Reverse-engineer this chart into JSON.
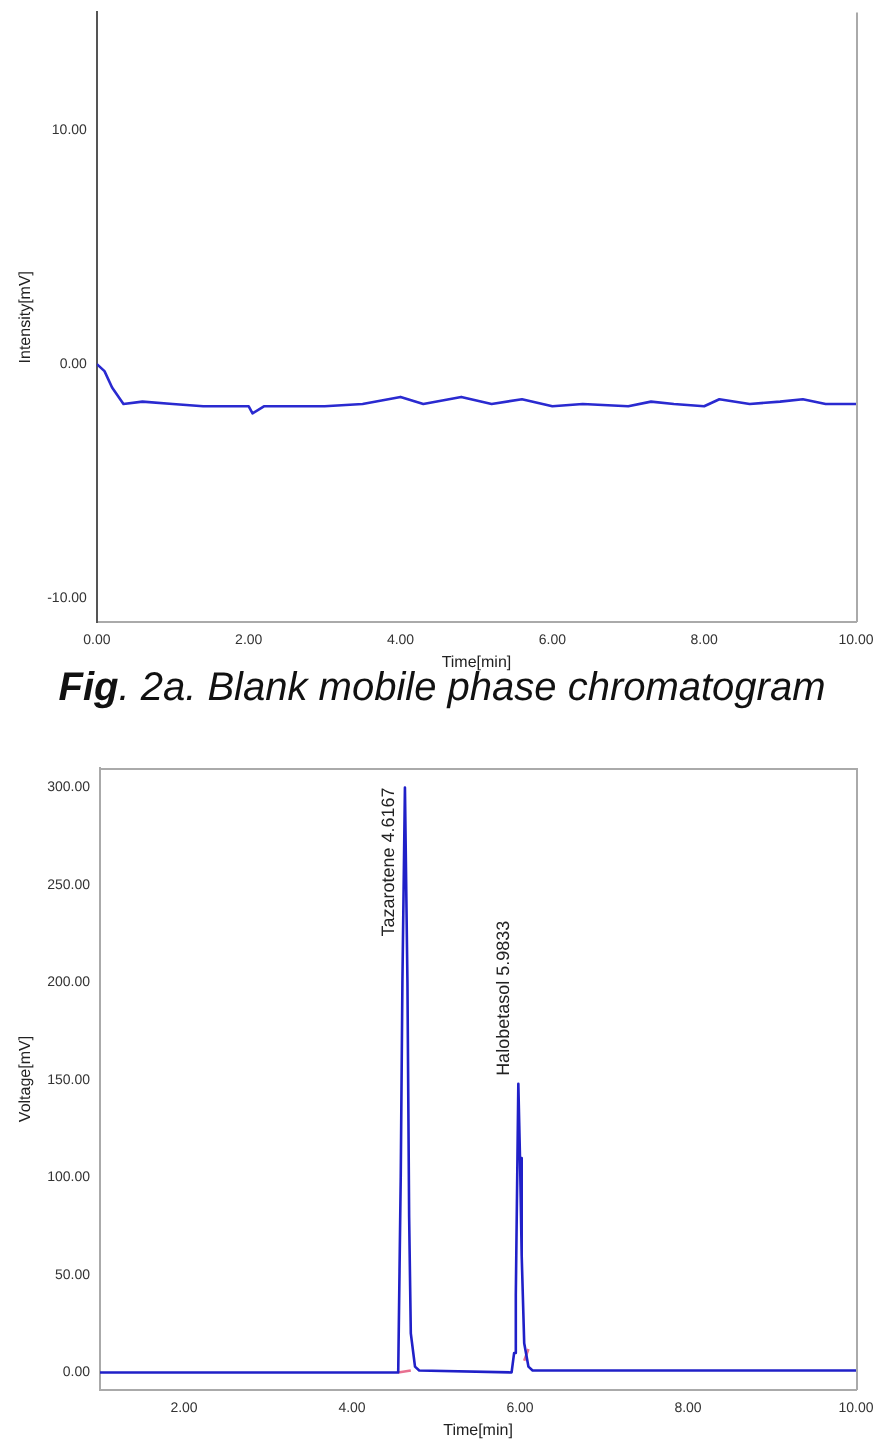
{
  "chart_data": [
    {
      "type": "line",
      "xlabel": "Time[min]",
      "ylabel": "Intensity[mV]",
      "xlim": [
        0,
        10
      ],
      "ylim": [
        -11,
        15
      ],
      "xticks": [
        {
          "value": 0,
          "label": "0.00"
        },
        {
          "value": 2,
          "label": "2.00"
        },
        {
          "value": 4,
          "label": "4.00"
        },
        {
          "value": 6,
          "label": "6.00"
        },
        {
          "value": 8,
          "label": "8.00"
        },
        {
          "value": 10,
          "label": "10.00"
        }
      ],
      "yticks": [
        {
          "value": -10,
          "label": "-10.00"
        },
        {
          "value": 0,
          "label": "0.00"
        },
        {
          "value": 10,
          "label": "10.00"
        }
      ],
      "grid": false,
      "legend": false,
      "marker": "none",
      "line_style": "solid",
      "annotations": [
        "Fig. 2a. Blank mobile phase chromatogram"
      ],
      "series": [
        {
          "color": "#2a2ad0",
          "x": [
            0,
            0.1,
            0.2,
            0.35,
            0.6,
            1.0,
            1.4,
            2.0,
            2.05,
            2.2,
            2.5,
            3.0,
            3.5,
            4.0,
            4.3,
            4.8,
            5.2,
            5.6,
            6.0,
            6.4,
            7.0,
            7.3,
            7.6,
            8.0,
            8.2,
            8.6,
            9.0,
            9.3,
            9.6,
            10
          ],
          "values": [
            0,
            -0.3,
            -1.0,
            -1.7,
            -1.6,
            -1.7,
            -1.8,
            -1.8,
            -2.1,
            -1.8,
            -1.8,
            -1.8,
            -1.7,
            -1.4,
            -1.7,
            -1.4,
            -1.7,
            -1.5,
            -1.8,
            -1.7,
            -1.8,
            -1.6,
            -1.7,
            -1.8,
            -1.5,
            -1.7,
            -1.6,
            -1.5,
            -1.7,
            -1.7
          ]
        }
      ]
    },
    {
      "type": "line",
      "xlabel": "Time[min]",
      "ylabel": "Voltage[mV]",
      "xlim": [
        1,
        10
      ],
      "ylim": [
        -9,
        310
      ],
      "xticks": [
        {
          "value": 2,
          "label": "2.00"
        },
        {
          "value": 4,
          "label": "4.00"
        },
        {
          "value": 6,
          "label": "6.00"
        },
        {
          "value": 8,
          "label": "8.00"
        },
        {
          "value": 10,
          "label": "10.00"
        }
      ],
      "yticks": [
        {
          "value": 0,
          "label": "0.00"
        },
        {
          "value": 50,
          "label": "50.00"
        },
        {
          "value": 100,
          "label": "100.00"
        },
        {
          "value": 150,
          "label": "150.00"
        },
        {
          "value": 200,
          "label": "200.00"
        },
        {
          "value": 250,
          "label": "250.00"
        },
        {
          "value": 300,
          "label": "300.00"
        }
      ],
      "grid": false,
      "legend": false,
      "marker": "none",
      "line_style": "solid",
      "annotations": [
        {
          "text": "Tazarotene 4.6167",
          "x": 4.6167,
          "y": 300
        },
        {
          "text": "Halobetasol 5.9833",
          "x": 5.9833,
          "y": 148
        }
      ],
      "series": [
        {
          "color": "#2020c8",
          "x": [
            1.0,
            4.4,
            4.55,
            4.58,
            4.6,
            4.63,
            4.66,
            4.68,
            4.7,
            4.75,
            4.8,
            5.9,
            5.93,
            5.95,
            5.98,
            6.0,
            6.02,
            6.05,
            6.1,
            6.15,
            10
          ],
          "values": [
            0,
            0,
            0,
            100,
            200,
            300,
            200,
            80,
            20,
            3,
            1,
            0,
            10,
            40,
            148,
            110,
            60,
            15,
            3,
            1,
            1
          ]
        },
        {
          "color": "#e87090",
          "x": [
            4.55,
            4.7,
            4.71,
            5.9,
            6.05,
            6.1
          ],
          "values": [
            0,
            1,
            null,
            null,
            6,
            12
          ]
        }
      ]
    }
  ]
}
